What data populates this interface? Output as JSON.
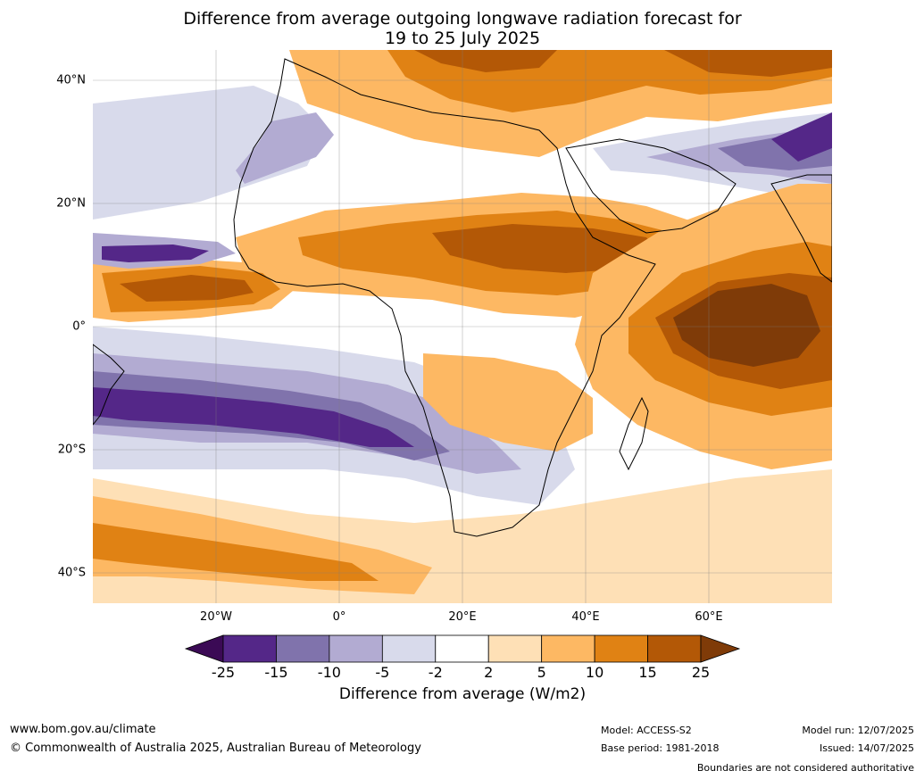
{
  "title_line1": "Difference from average outgoing longwave radiation forecast for",
  "title_line2": "19 to 25 July 2025",
  "lat_labels": [
    "40°N",
    "20°N",
    "0°",
    "20°S",
    "40°S"
  ],
  "lon_labels": [
    "20°W",
    "0°",
    "20°E",
    "40°E",
    "60°E"
  ],
  "colorbar": {
    "title": "Difference from average (W/m2)",
    "ticks": [
      "-25",
      "-15",
      "-10",
      "-5",
      "-2",
      "2",
      "5",
      "10",
      "15",
      "25"
    ],
    "colors": [
      "#3b0a55",
      "#542788",
      "#8073ac",
      "#b2abd2",
      "#d8daeb",
      "#ffffff",
      "#fee0b6",
      "#fdb863",
      "#e08214",
      "#b35806",
      "#7f3b08"
    ]
  },
  "footer": {
    "website": "www.bom.gov.au/climate",
    "copyright": "© Commonwealth of Australia 2025, Australian Bureau of Meteorology",
    "model": "Model: ACCESS-S2",
    "base_period": "Base period: 1981-2018",
    "model_run": "Model run: 12/07/2025",
    "issued": "Issued: 14/07/2025",
    "disclaimer": "Boundaries are not considered authoritative"
  }
}
